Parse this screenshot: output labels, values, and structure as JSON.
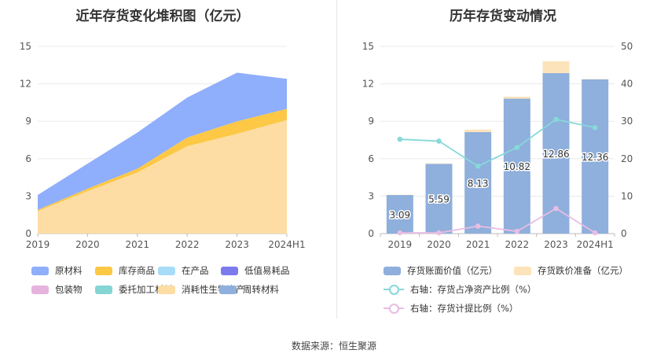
{
  "source_text": "数据来源：恒生聚源",
  "chart_data": [
    {
      "type": "area",
      "stacked": true,
      "title": "近年存货变化堆积图（亿元）",
      "categories": [
        "2019",
        "2020",
        "2021",
        "2022",
        "2023",
        "2024H1"
      ],
      "ylim": [
        0,
        15
      ],
      "yticks": [
        "0",
        "3",
        "6",
        "9",
        "12",
        "15"
      ],
      "grid": true,
      "legend_position": "bottom",
      "series": [
        {
          "name": "原材料",
          "color": "#8faefc",
          "values": [
            1.2,
            2.0,
            2.9,
            3.2,
            3.9,
            2.4
          ]
        },
        {
          "name": "库存商品",
          "color": "#fcc845",
          "values": [
            0.1,
            0.2,
            0.3,
            0.7,
            1.0,
            0.9
          ]
        },
        {
          "name": "在产品",
          "color": "#a7dcf8",
          "values": [
            0,
            0,
            0,
            0,
            0,
            0
          ]
        },
        {
          "name": "低值易耗品",
          "color": "#7b7bee",
          "values": [
            0,
            0,
            0,
            0,
            0,
            0
          ]
        },
        {
          "name": "包装物",
          "color": "#e6b3dd",
          "values": [
            0,
            0,
            0,
            0,
            0,
            0
          ]
        },
        {
          "name": "委托加工材料",
          "color": "#86d5d5",
          "values": [
            0,
            0,
            0,
            0,
            0,
            0
          ]
        },
        {
          "name": "消耗性生物资产",
          "color": "#fddda3",
          "values": [
            1.8,
            3.4,
            4.9,
            7.0,
            8.0,
            9.1
          ]
        },
        {
          "name": "周转材料",
          "color": "#8fb0dc",
          "values": [
            0,
            0,
            0,
            0,
            0,
            0
          ]
        }
      ]
    },
    {
      "type": "bar",
      "title": "历年存货变动情况",
      "categories": [
        "2019",
        "2020",
        "2021",
        "2022",
        "2023",
        "2024H1"
      ],
      "ylim": [
        0,
        15
      ],
      "yticks": [
        "0",
        "3",
        "6",
        "9",
        "12",
        "15"
      ],
      "y2lim": [
        0,
        50
      ],
      "y2ticks": [
        "0",
        "10",
        "20",
        "30",
        "40",
        "50"
      ],
      "grid": true,
      "legend_position": "bottom",
      "series": [
        {
          "name": "存货账面价值（亿元）",
          "kind": "bar",
          "axis": "left",
          "color": "#8fafdc",
          "values": [
            3.09,
            5.59,
            8.13,
            10.82,
            12.86,
            12.36
          ],
          "labels": [
            "3.09",
            "5.59",
            "8.13",
            "10.82",
            "12.86",
            "12.36"
          ]
        },
        {
          "name": "存货跌价准备（亿元）",
          "kind": "bar",
          "axis": "left",
          "color": "#fce3b9",
          "values": [
            0.02,
            0.04,
            0.2,
            0.15,
            0.95,
            0.02
          ]
        },
        {
          "name": "右轴：存货占净资产比例（%）",
          "kind": "line",
          "axis": "right",
          "color": "#86d9d9",
          "values": [
            25.2,
            24.7,
            18.0,
            23.0,
            30.5,
            28.3
          ]
        },
        {
          "name": "右轴：存货计提比例（%）",
          "kind": "line",
          "axis": "right",
          "color": "#e8bde4",
          "values": [
            0.2,
            0.2,
            2.0,
            0.6,
            6.7,
            0.2
          ]
        }
      ]
    }
  ]
}
